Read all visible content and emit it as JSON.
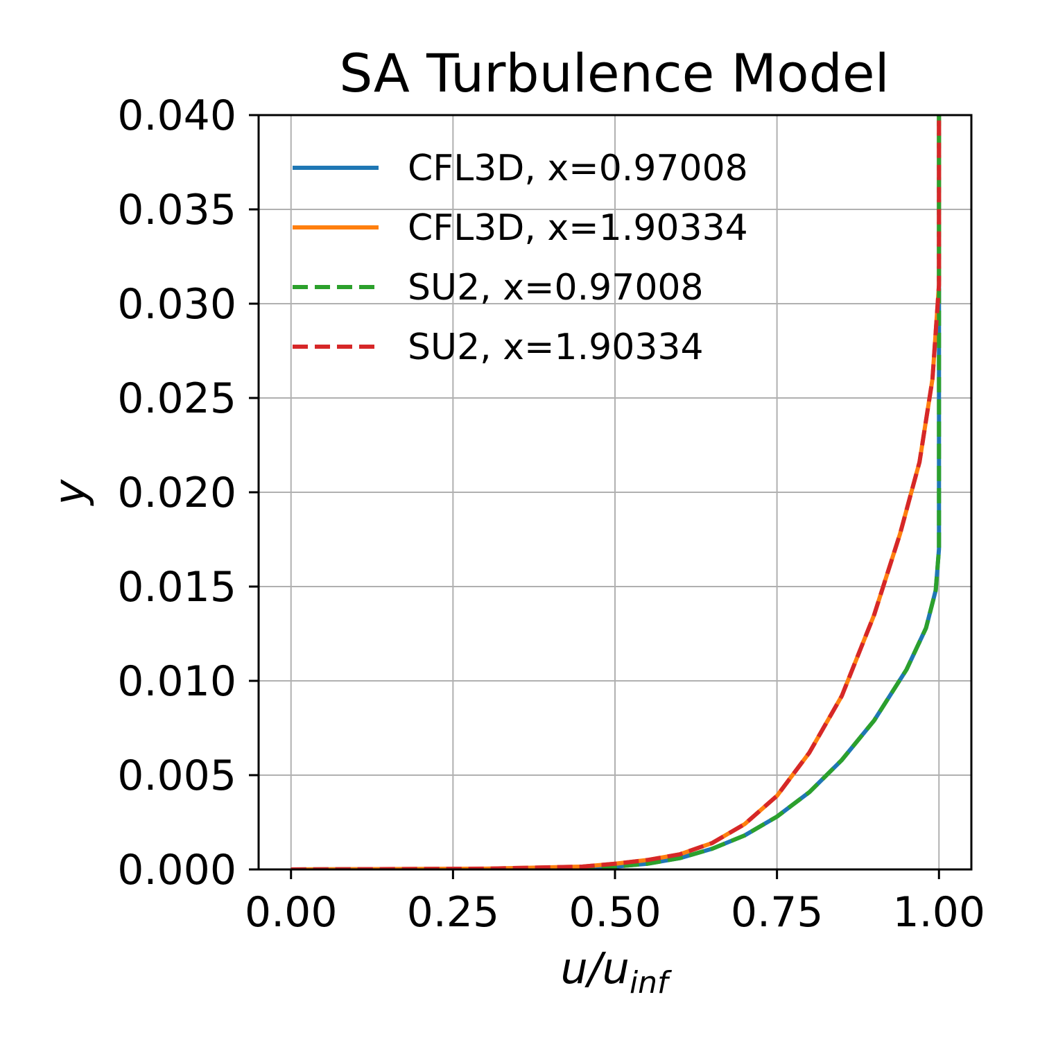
{
  "chart_data": {
    "type": "line",
    "title": "SA Turbulence Model",
    "xlabel": "u/u",
    "xlabel_subscript": "inf",
    "ylabel": "y",
    "xlim": [
      -0.05,
      1.05
    ],
    "ylim": [
      0.0,
      0.04
    ],
    "x_ticks": [
      "0.00",
      "0.25",
      "0.50",
      "0.75",
      "1.00"
    ],
    "y_ticks": [
      "0.000",
      "0.005",
      "0.010",
      "0.015",
      "0.020",
      "0.025",
      "0.030",
      "0.035",
      "0.040"
    ],
    "grid": true,
    "legend_position": "top-left",
    "series": [
      {
        "name": "CFL3D, x=0.97008",
        "color": "#1f77b4",
        "dash": "solid",
        "points": [
          [
            0.0,
            0.0
          ],
          [
            0.3,
            3e-05
          ],
          [
            0.45,
            0.0001
          ],
          [
            0.5,
            0.00015
          ],
          [
            0.55,
            0.0003
          ],
          [
            0.6,
            0.0006
          ],
          [
            0.65,
            0.0011
          ],
          [
            0.7,
            0.0018
          ],
          [
            0.75,
            0.0028
          ],
          [
            0.8,
            0.0041
          ],
          [
            0.85,
            0.0058
          ],
          [
            0.9,
            0.0079
          ],
          [
            0.95,
            0.0106
          ],
          [
            0.98,
            0.0128
          ],
          [
            0.995,
            0.0148
          ],
          [
            1.0,
            0.017
          ],
          [
            1.0,
            0.04
          ]
        ]
      },
      {
        "name": "CFL3D, x=1.90334",
        "color": "#ff7f0e",
        "dash": "solid",
        "points": [
          [
            0.0,
            0.0
          ],
          [
            0.3,
            4e-05
          ],
          [
            0.45,
            0.00015
          ],
          [
            0.5,
            0.0003
          ],
          [
            0.55,
            0.0005
          ],
          [
            0.6,
            0.0008
          ],
          [
            0.65,
            0.0014
          ],
          [
            0.7,
            0.0024
          ],
          [
            0.75,
            0.0039
          ],
          [
            0.8,
            0.0062
          ],
          [
            0.85,
            0.0092
          ],
          [
            0.9,
            0.0135
          ],
          [
            0.94,
            0.0178
          ],
          [
            0.97,
            0.0216
          ],
          [
            0.99,
            0.026
          ],
          [
            1.0,
            0.031
          ],
          [
            1.0,
            0.04
          ]
        ]
      },
      {
        "name": "SU2, x=0.97008",
        "color": "#2ca02c",
        "dash": "dashed",
        "points": [
          [
            0.0,
            0.0
          ],
          [
            0.3,
            3e-05
          ],
          [
            0.45,
            0.0001
          ],
          [
            0.5,
            0.00015
          ],
          [
            0.55,
            0.0003
          ],
          [
            0.6,
            0.0006
          ],
          [
            0.65,
            0.0011
          ],
          [
            0.7,
            0.0018
          ],
          [
            0.75,
            0.0028
          ],
          [
            0.8,
            0.0041
          ],
          [
            0.85,
            0.0058
          ],
          [
            0.9,
            0.0079
          ],
          [
            0.95,
            0.0106
          ],
          [
            0.98,
            0.0128
          ],
          [
            0.995,
            0.0148
          ],
          [
            1.0,
            0.017
          ],
          [
            1.0,
            0.04
          ]
        ]
      },
      {
        "name": "SU2, x=1.90334",
        "color": "#d62728",
        "dash": "dashed",
        "points": [
          [
            0.0,
            0.0
          ],
          [
            0.3,
            4e-05
          ],
          [
            0.45,
            0.00015
          ],
          [
            0.5,
            0.0003
          ],
          [
            0.55,
            0.0005
          ],
          [
            0.6,
            0.0008
          ],
          [
            0.65,
            0.0014
          ],
          [
            0.7,
            0.0024
          ],
          [
            0.75,
            0.0039
          ],
          [
            0.8,
            0.0062
          ],
          [
            0.85,
            0.0092
          ],
          [
            0.9,
            0.0135
          ],
          [
            0.94,
            0.0178
          ],
          [
            0.97,
            0.0216
          ],
          [
            0.99,
            0.026
          ],
          [
            1.0,
            0.031
          ],
          [
            1.0,
            0.04
          ]
        ]
      }
    ]
  }
}
